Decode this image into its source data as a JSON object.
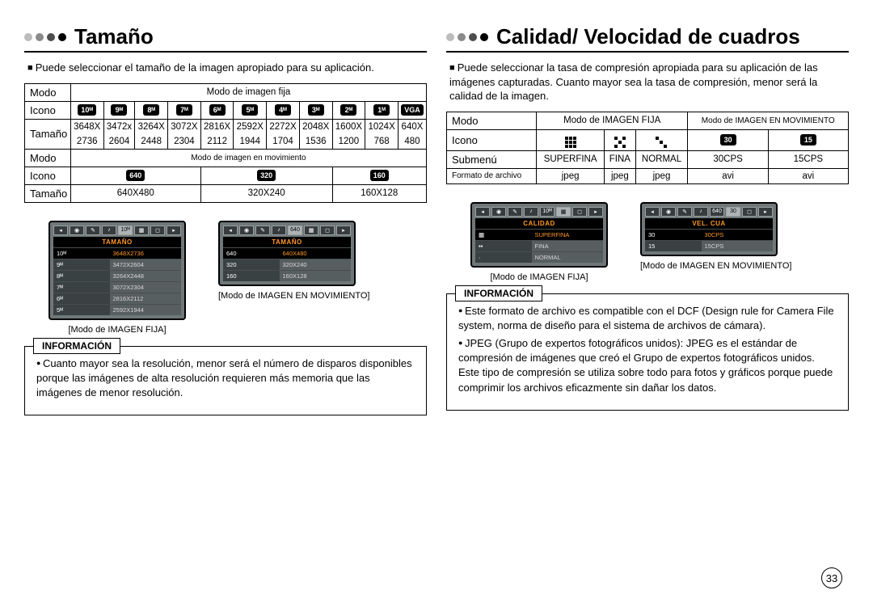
{
  "page_number": "33",
  "left": {
    "title": "Tamaño",
    "intro": "Puede seleccionar el tamaño de la imagen apropiado para su aplicación.",
    "table1": {
      "row1_label": "Modo",
      "row1_span": "Modo de imagen fija",
      "row2_label": "Icono",
      "icons": [
        "10ᴹ",
        "9ᴹ",
        "8ᴹ",
        "7ᴹ",
        "6ᴹ",
        "5ᴹ",
        "4ᴹ",
        "3ᴹ",
        "2ᴹ",
        "1ᴹ",
        "VGA"
      ],
      "row3_label": "Tamaño",
      "sizes_top": [
        "3648X",
        "3472x",
        "3264X",
        "3072X",
        "2816X",
        "2592X",
        "2272X",
        "2048X",
        "1600X",
        "1024X",
        "640X"
      ],
      "sizes_bot": [
        "2736",
        "2604",
        "2448",
        "2304",
        "2112",
        "1944",
        "1704",
        "1536",
        "1200",
        "768",
        "480"
      ],
      "row4_label": "Modo",
      "row4_span": "Modo de imagen en movimiento",
      "row5_label": "Icono",
      "video_icons": [
        "640",
        "320",
        "160"
      ],
      "row6_label": "Tamaño",
      "video_sizes": [
        "640X480",
        "320X240",
        "160X128"
      ]
    },
    "lcd1": {
      "menu": "TAMAÑO",
      "rows_l": [
        "10ᴹ",
        "9ᴹ",
        "8ᴹ",
        "7ᴹ",
        "6ᴹ",
        "5ᴹ"
      ],
      "rows_r": [
        "3648X2736",
        "3472X2604",
        "3264X2448",
        "3072X2304",
        "2816X2112",
        "2592X1944"
      ],
      "caption": "[Modo de IMAGEN FIJA]"
    },
    "lcd2": {
      "menu": "TAMAÑO",
      "rows_l": [
        "640",
        "320",
        "160"
      ],
      "rows_r": [
        "640X480",
        "320X240",
        "160X128"
      ],
      "caption": "[Modo de IMAGEN EN MOVIMIENTO]"
    },
    "info_title": "INFORMACIÓN",
    "info_items": [
      "Cuanto mayor sea la resolución, menor será el número de disparos disponibles porque las imágenes de alta resolución requieren más memoria que las imágenes de menor resolución."
    ]
  },
  "right": {
    "title": "Calidad/ Velocidad de cuadros",
    "intro": "Puede seleccionar la tasa de compresión apropiada para su aplicación de las imágenes capturadas. Cuanto mayor sea la tasa de compresión, menor será la calidad de la imagen.",
    "table": {
      "r1_label": "Modo",
      "r1_a": "Modo de IMAGEN FIJA",
      "r1_b": "Modo de IMAGEN EN MOVIMIENTO",
      "r2_label": "Icono",
      "video_badges": [
        "30",
        "15"
      ],
      "r3_label": "Submenú",
      "r3_vals": [
        "SUPERFINA",
        "FINA",
        "NORMAL",
        "30CPS",
        "15CPS"
      ],
      "r4_label": "Formato de archivo",
      "r4_vals": [
        "jpeg",
        "jpeg",
        "jpeg",
        "avi",
        "avi"
      ]
    },
    "lcd1": {
      "menu": "CALIDAD",
      "rows_l": [
        "▦",
        "▪▪",
        "·"
      ],
      "rows_r": [
        "SUPERFINA",
        "FINA",
        "NORMAL"
      ],
      "caption": "[Modo de IMAGEN FIJA]"
    },
    "lcd2": {
      "menu": "VEL. CUA",
      "rows_l": [
        "30",
        "15"
      ],
      "rows_r": [
        "30CPS",
        "15CPS"
      ],
      "caption": "[Modo de IMAGEN EN MOVIMIENTO]"
    },
    "info_title": "INFORMACIÓN",
    "info_items": [
      "Este formato de archivo es compatible con el DCF (Design rule for Camera File system, norma de diseño para el sistema de archivos de cámara).",
      "JPEG (Grupo de expertos fotográficos unidos): JPEG es el estándar de compresión de imágenes que creó el Grupo de expertos fotográficos unidos. Este tipo de compresión se utiliza sobre todo para fotos y gráficos porque puede comprimir los archivos eficazmente sin dañar los datos."
    ]
  }
}
